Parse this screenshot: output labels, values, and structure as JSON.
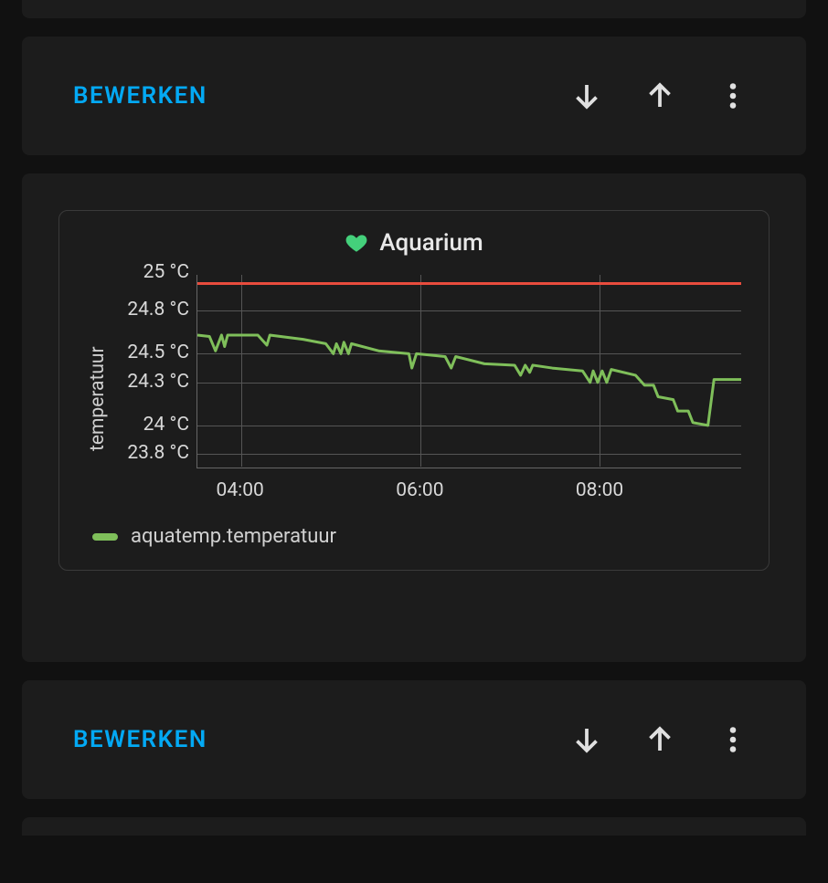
{
  "colors": {
    "page_bg": "#111111",
    "panel_bg": "#1c1c1c",
    "border": "#3a3a3a",
    "grid": "#555555",
    "axis": "#666666",
    "text": "#e0e0e0",
    "edit_link": "#03a9f4",
    "heart_icon": "#44d07b",
    "series": "#7fbf5a",
    "threshold": "#e84c3d"
  },
  "action_bar": {
    "edit_label": "BEWERKEN"
  },
  "chart": {
    "type": "line",
    "title": "Aquarium",
    "y_axis_label": "temperatuur",
    "y_ticks": [
      "25 °C",
      "24.8 °C",
      "24.5 °C",
      "24.3 °C",
      "24 °C",
      "23.8 °C"
    ],
    "y_tick_values": [
      25,
      24.8,
      24.5,
      24.3,
      24,
      23.8
    ],
    "ylim": [
      23.7,
      25.05
    ],
    "x_ticks": [
      {
        "label": "04:00",
        "pos_pct": 8
      },
      {
        "label": "06:00",
        "pos_pct": 41
      },
      {
        "label": "08:00",
        "pos_pct": 74
      }
    ],
    "xlim_minutes": [
      210,
      570
    ],
    "threshold_value": 25,
    "legend": {
      "label": "aquatemp.temperatuur"
    },
    "series": [
      {
        "t": 210,
        "v": 24.63
      },
      {
        "t": 218,
        "v": 24.62
      },
      {
        "t": 222,
        "v": 24.52
      },
      {
        "t": 226,
        "v": 24.63
      },
      {
        "t": 228,
        "v": 24.55
      },
      {
        "t": 230,
        "v": 24.63
      },
      {
        "t": 250,
        "v": 24.63
      },
      {
        "t": 256,
        "v": 24.56
      },
      {
        "t": 258,
        "v": 24.63
      },
      {
        "t": 280,
        "v": 24.6
      },
      {
        "t": 295,
        "v": 24.57
      },
      {
        "t": 300,
        "v": 24.5
      },
      {
        "t": 302,
        "v": 24.57
      },
      {
        "t": 305,
        "v": 24.5
      },
      {
        "t": 307,
        "v": 24.58
      },
      {
        "t": 310,
        "v": 24.5
      },
      {
        "t": 312,
        "v": 24.57
      },
      {
        "t": 330,
        "v": 24.52
      },
      {
        "t": 350,
        "v": 24.5
      },
      {
        "t": 352,
        "v": 24.4
      },
      {
        "t": 355,
        "v": 24.5
      },
      {
        "t": 374,
        "v": 24.48
      },
      {
        "t": 378,
        "v": 24.4
      },
      {
        "t": 381,
        "v": 24.48
      },
      {
        "t": 400,
        "v": 24.43
      },
      {
        "t": 420,
        "v": 24.42
      },
      {
        "t": 424,
        "v": 24.35
      },
      {
        "t": 427,
        "v": 24.42
      },
      {
        "t": 430,
        "v": 24.37
      },
      {
        "t": 432,
        "v": 24.42
      },
      {
        "t": 445,
        "v": 24.4
      },
      {
        "t": 465,
        "v": 24.38
      },
      {
        "t": 470,
        "v": 24.3
      },
      {
        "t": 472,
        "v": 24.38
      },
      {
        "t": 475,
        "v": 24.3
      },
      {
        "t": 478,
        "v": 24.38
      },
      {
        "t": 481,
        "v": 24.3
      },
      {
        "t": 484,
        "v": 24.39
      },
      {
        "t": 500,
        "v": 24.35
      },
      {
        "t": 506,
        "v": 24.28
      },
      {
        "t": 512,
        "v": 24.28
      },
      {
        "t": 515,
        "v": 24.2
      },
      {
        "t": 525,
        "v": 24.18
      },
      {
        "t": 528,
        "v": 24.1
      },
      {
        "t": 535,
        "v": 24.1
      },
      {
        "t": 538,
        "v": 24.02
      },
      {
        "t": 548,
        "v": 24.0
      },
      {
        "t": 552,
        "v": 24.32
      },
      {
        "t": 570,
        "v": 24.32
      }
    ],
    "line_width": 3,
    "grid_on": true,
    "background_color": "#1c1c1c",
    "title_fontsize": 26,
    "label_fontsize": 21,
    "tick_fontsize": 21
  }
}
